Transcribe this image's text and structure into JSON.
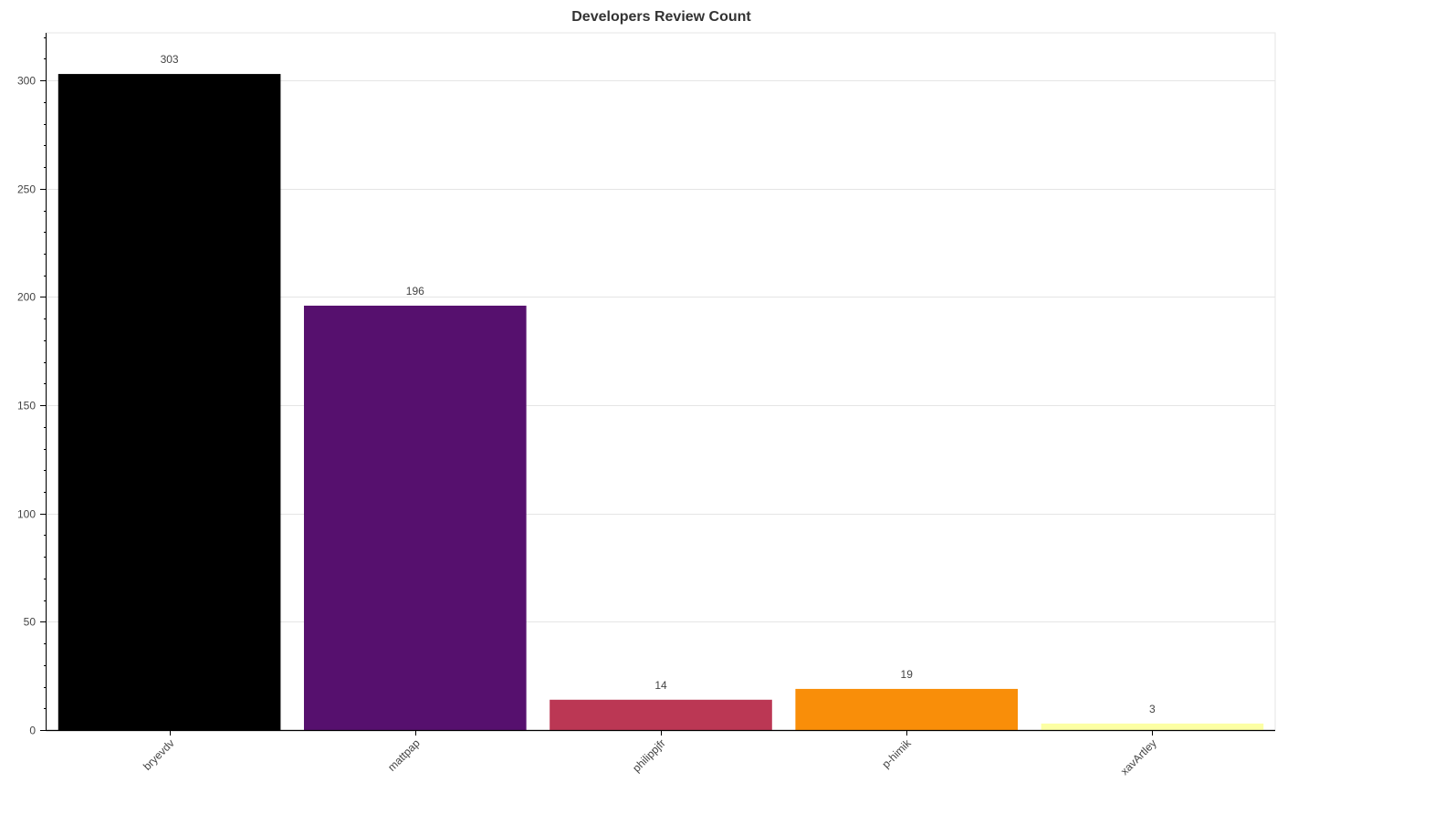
{
  "chart_data": {
    "type": "bar",
    "title": "Developers Review Count",
    "xlabel": "",
    "ylabel": "",
    "categories": [
      "bryevdv",
      "mattpap",
      "philippjfr",
      "p-himik",
      "xavArtley"
    ],
    "values": [
      303,
      196,
      14,
      19,
      3
    ],
    "colors": [
      "#000000",
      "#56106e",
      "#bb3754",
      "#f98e09",
      "#fcffa4"
    ],
    "ylim": [
      0,
      322
    ],
    "yticks": [
      0,
      50,
      100,
      150,
      200,
      250,
      300
    ],
    "grid": true,
    "legend": "none"
  }
}
